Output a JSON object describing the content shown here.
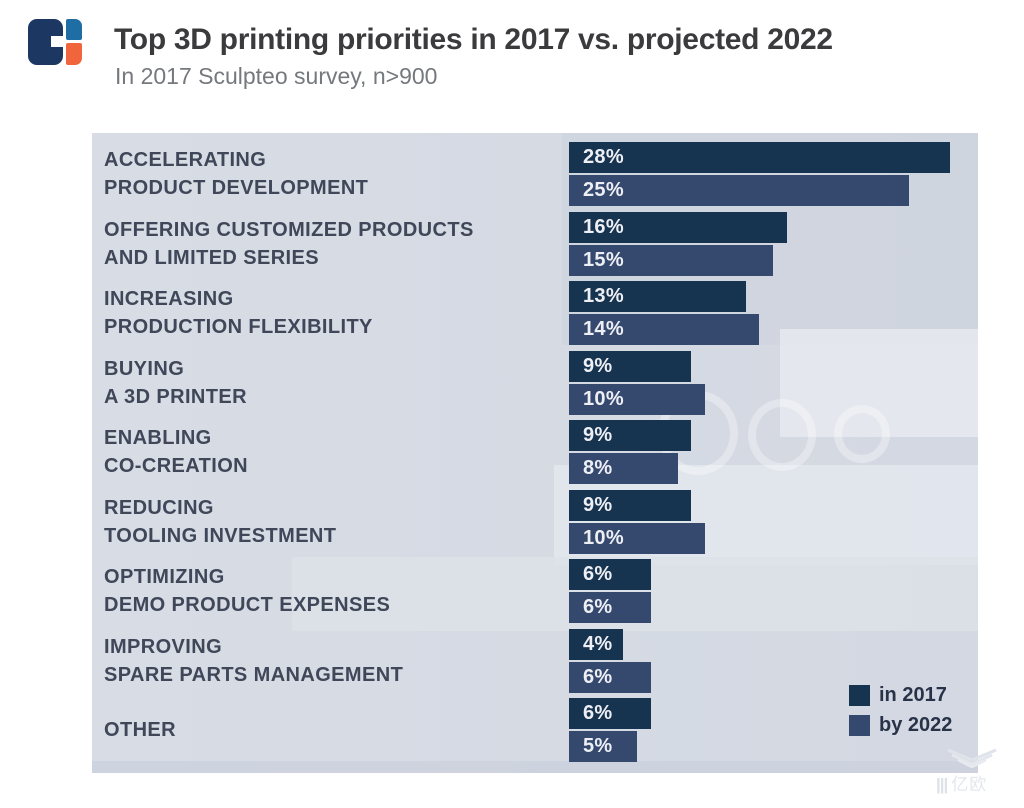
{
  "header": {
    "title": "Top 3D printing priorities in 2017 vs. projected 2022",
    "subtitle": "In 2017 Sculpteo survey, n>900"
  },
  "chart_data": {
    "type": "bar",
    "orientation": "horizontal",
    "title": "Top 3D printing priorities in 2017 vs. projected 2022",
    "subtitle": "In 2017 Sculpteo survey, n>900",
    "unit": "%",
    "categories": [
      [
        "ACCELERATING",
        "PRODUCT DEVELOPMENT"
      ],
      [
        "OFFERING CUSTOMIZED PRODUCTS",
        "AND LIMITED SERIES"
      ],
      [
        "INCREASING",
        "PRODUCTION FLEXIBILITY"
      ],
      [
        "BUYING",
        "A 3D PRINTER"
      ],
      [
        "ENABLING",
        "CO-CREATION"
      ],
      [
        "REDUCING",
        "TOOLING INVESTMENT"
      ],
      [
        "OPTIMIZING",
        "DEMO PRODUCT EXPENSES"
      ],
      [
        "IMPROVING",
        "SPARE PARTS MANAGEMENT"
      ],
      [
        "OTHER"
      ]
    ],
    "series": [
      {
        "name": "in 2017",
        "color": "#16334f",
        "values": [
          28,
          16,
          13,
          9,
          9,
          9,
          6,
          4,
          6
        ]
      },
      {
        "name": "by 2022",
        "color": "#35496f",
        "values": [
          25,
          15,
          14,
          10,
          8,
          10,
          6,
          6,
          5
        ]
      }
    ],
    "xlim": [
      0,
      30
    ],
    "grid": false,
    "value_labels": true,
    "legend_position": "bottom-right"
  },
  "legend": {
    "items": [
      {
        "label": "in 2017",
        "color": "#16334f"
      },
      {
        "label": "by 2022",
        "color": "#35496f"
      }
    ]
  },
  "colors": {
    "bar-dark": "#16334f",
    "bar-light": "#35496f",
    "chart-bg": "#d6dae3",
    "label-text": "#3f4759",
    "title-text": "#3b3b3d",
    "subtitle-text": "#75787d",
    "legend-text": "#283349",
    "logo-navy": "#1d3763",
    "logo-blue": "#1e6da5",
    "logo-orange": "#f0653b",
    "value-text": "#edeff4"
  },
  "watermark": {
    "icon": "wing-chevrons-icon",
    "bars": "|||",
    "text": "亿欧"
  }
}
